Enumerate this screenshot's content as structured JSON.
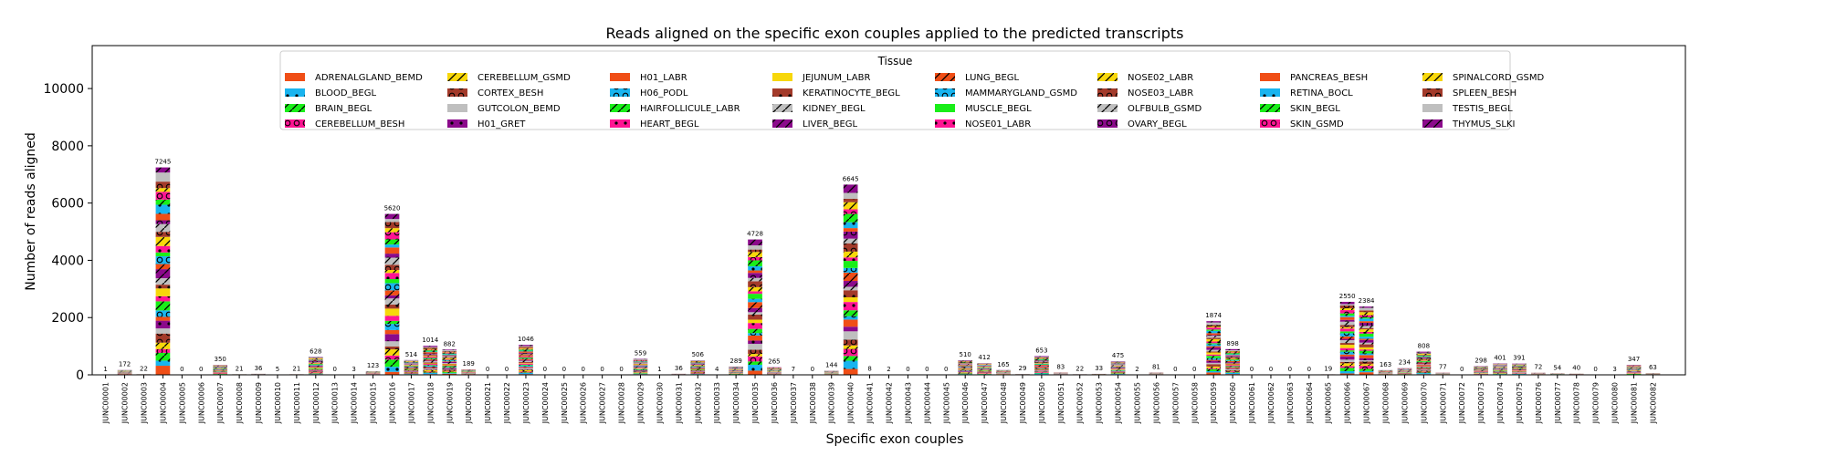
{
  "chart_data": {
    "type": "bar",
    "stacked": true,
    "title": "Reads aligned on the specific exon couples applied to the predicted transcripts",
    "xlabel": "Specific exon couples",
    "ylabel": "Number of reads aligned",
    "ylim": [
      0,
      11500
    ],
    "yticks": [
      0,
      2000,
      4000,
      6000,
      8000,
      10000
    ],
    "legend_title": "Tissue",
    "legend_placement": "upper-center",
    "grid": false,
    "categories": [
      "JUNC00001",
      "JUNC00002",
      "JUNC00003",
      "JUNC00004",
      "JUNC00005",
      "JUNC00006",
      "JUNC00007",
      "JUNC00008",
      "JUNC00009",
      "JUNC00010",
      "JUNC00011",
      "JUNC00012",
      "JUNC00013",
      "JUNC00014",
      "JUNC00015",
      "JUNC00016",
      "JUNC00017",
      "JUNC00018",
      "JUNC00019",
      "JUNC00020",
      "JUNC00021",
      "JUNC00022",
      "JUNC00023",
      "JUNC00024",
      "JUNC00025",
      "JUNC00026",
      "JUNC00027",
      "JUNC00028",
      "JUNC00029",
      "JUNC00030",
      "JUNC00031",
      "JUNC00032",
      "JUNC00033",
      "JUNC00034",
      "JUNC00035",
      "JUNC00036",
      "JUNC00037",
      "JUNC00038",
      "JUNC00039",
      "JUNC00040",
      "JUNC00041",
      "JUNC00042",
      "JUNC00043",
      "JUNC00044",
      "JUNC00045",
      "JUNC00046",
      "JUNC00047",
      "JUNC00048",
      "JUNC00049",
      "JUNC00050",
      "JUNC00051",
      "JUNC00052",
      "JUNC00053",
      "JUNC00054",
      "JUNC00055",
      "JUNC00056",
      "JUNC00057",
      "JUNC00058",
      "JUNC00059",
      "JUNC00060",
      "JUNC00061",
      "JUNC00062",
      "JUNC00063",
      "JUNC00064",
      "JUNC00065",
      "JUNC00066",
      "JUNC00067",
      "JUNC00068",
      "JUNC00069",
      "JUNC00070",
      "JUNC00071",
      "JUNC00072",
      "JUNC00073",
      "JUNC00074",
      "JUNC00075",
      "JUNC00076",
      "JUNC00077",
      "JUNC00078",
      "JUNC00079",
      "JUNC00080",
      "JUNC00081",
      "JUNC00082"
    ],
    "totals": [
      1,
      172,
      22,
      7245,
      0,
      0,
      350,
      21,
      36,
      5,
      21,
      628,
      0,
      3,
      123,
      5620,
      514,
      1014,
      882,
      189,
      0,
      0,
      1046,
      0,
      0,
      0,
      0,
      0,
      559,
      1,
      36,
      506,
      4,
      289,
      4728,
      265,
      7,
      0,
      144,
      6645,
      8,
      2,
      0,
      0,
      0,
      510,
      412,
      165,
      29,
      653,
      83,
      22,
      33,
      475,
      2,
      81,
      0,
      0,
      1874,
      898,
      0,
      0,
      0,
      0,
      19,
      2550,
      2384,
      163,
      234,
      808,
      77,
      0,
      298,
      401,
      391,
      72,
      54,
      40,
      0,
      3,
      347,
      63
    ],
    "series": [
      {
        "name": "ADRENALGLAND_BEMD",
        "color": "#f04e16",
        "pattern": "none"
      },
      {
        "name": "BLOOD_BEGL",
        "color": "#19b4ef",
        "pattern": "dot"
      },
      {
        "name": "BRAIN_BEGL",
        "color": "#19ee19",
        "pattern": "slash"
      },
      {
        "name": "CEREBELLUM_BESH",
        "color": "#ff1493",
        "pattern": "circle"
      },
      {
        "name": "CEREBELLUM_GSMD",
        "color": "#f7d70a",
        "pattern": "slash"
      },
      {
        "name": "CORTEX_BESH",
        "color": "#a33a2a",
        "pattern": "circle"
      },
      {
        "name": "GUTCOLON_BEMD",
        "color": "#bfbfbf",
        "pattern": "none"
      },
      {
        "name": "H01_GRET",
        "color": "#8b0a8b",
        "pattern": "dot"
      },
      {
        "name": "H01_LABR",
        "color": "#f04e16",
        "pattern": "none"
      },
      {
        "name": "H06_PODL",
        "color": "#19b4ef",
        "pattern": "circle"
      },
      {
        "name": "HAIRFOLLICULE_LABR",
        "color": "#19ee19",
        "pattern": "slash"
      },
      {
        "name": "HEART_BEGL",
        "color": "#ff1493",
        "pattern": "dot"
      },
      {
        "name": "JEJUNUM_LABR",
        "color": "#f7d70a",
        "pattern": "none"
      },
      {
        "name": "KERATINOCYTE_BEGL",
        "color": "#a33a2a",
        "pattern": "dot"
      },
      {
        "name": "KIDNEY_BEGL",
        "color": "#bfbfbf",
        "pattern": "slash"
      },
      {
        "name": "LIVER_BEGL",
        "color": "#8b0a8b",
        "pattern": "slash"
      },
      {
        "name": "LUNG_BEGL",
        "color": "#f04e16",
        "pattern": "slash"
      },
      {
        "name": "MAMMARYGLAND_GSMD",
        "color": "#19b4ef",
        "pattern": "circle"
      },
      {
        "name": "MUSCLE_BEGL",
        "color": "#19ee19",
        "pattern": "none"
      },
      {
        "name": "NOSE01_LABR",
        "color": "#ff1493",
        "pattern": "dot"
      },
      {
        "name": "NOSE02_LABR",
        "color": "#f7d70a",
        "pattern": "slash"
      },
      {
        "name": "NOSE03_LABR",
        "color": "#a33a2a",
        "pattern": "circle"
      },
      {
        "name": "OLFBULB_GSMD",
        "color": "#bfbfbf",
        "pattern": "slash"
      },
      {
        "name": "OVARY_BEGL",
        "color": "#8b0a8b",
        "pattern": "circle"
      },
      {
        "name": "PANCREAS_BESH",
        "color": "#f04e16",
        "pattern": "none"
      },
      {
        "name": "RETINA_BOCL",
        "color": "#19b4ef",
        "pattern": "dot"
      },
      {
        "name": "SKIN_BEGL",
        "color": "#19ee19",
        "pattern": "slash"
      },
      {
        "name": "SKIN_GSMD",
        "color": "#ff1493",
        "pattern": "circle"
      },
      {
        "name": "SPINALCORD_GSMD",
        "color": "#f7d70a",
        "pattern": "slash"
      },
      {
        "name": "SPLEEN_BESH",
        "color": "#a33a2a",
        "pattern": "circle"
      },
      {
        "name": "TESTIS_BEGL",
        "color": "#bfbfbf",
        "pattern": "none"
      },
      {
        "name": "THYMUS_SLKI",
        "color": "#8b0a8b",
        "pattern": "slash"
      }
    ]
  }
}
